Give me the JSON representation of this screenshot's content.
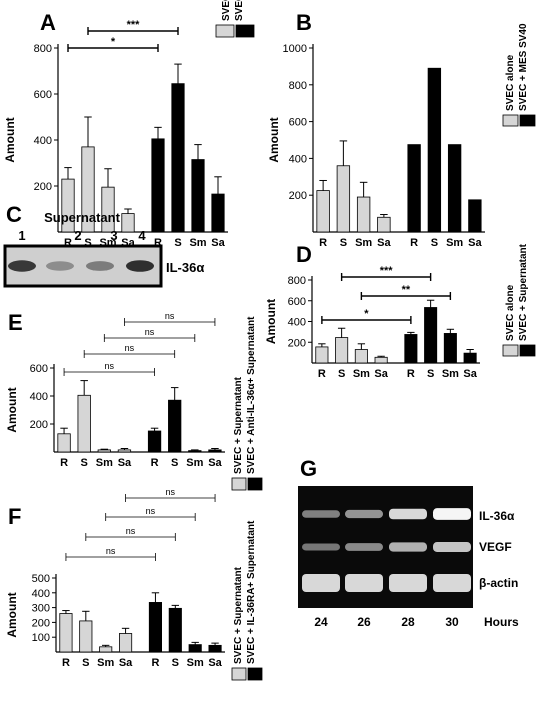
{
  "colors": {
    "light": "#d6d6d6",
    "dark": "#000000"
  },
  "chart_data": [
    {
      "panel": "A",
      "type": "bar",
      "categories": [
        "R",
        "S",
        "Sm",
        "Sa",
        "R",
        "S",
        "Sm",
        "Sa"
      ],
      "values": [
        230,
        370,
        195,
        80,
        405,
        645,
        315,
        165
      ],
      "errors": [
        50,
        130,
        80,
        20,
        50,
        85,
        65,
        75
      ],
      "series_groups": [
        "light",
        "light",
        "light",
        "light",
        "dark",
        "dark",
        "dark",
        "dark"
      ],
      "ylabel": "Amount",
      "ylim": [
        0,
        800
      ],
      "yticks": [
        200,
        400,
        600,
        800
      ],
      "legend": [
        "SVEC in M-RGF",
        "SVEC in M-NGF"
      ],
      "significance": [
        {
          "from": 0,
          "to": 4,
          "label": "*"
        },
        {
          "from": 1,
          "to": 5,
          "label": "***"
        }
      ]
    },
    {
      "panel": "B",
      "type": "bar",
      "categories": [
        "R",
        "S",
        "Sm",
        "Sa",
        "R",
        "S",
        "Sm",
        "Sa"
      ],
      "values": [
        225,
        360,
        190,
        80,
        475,
        890,
        475,
        175
      ],
      "errors": [
        55,
        135,
        80,
        15,
        0,
        0,
        0,
        0
      ],
      "series_groups": [
        "light",
        "light",
        "light",
        "light",
        "dark",
        "dark",
        "dark",
        "dark"
      ],
      "ylabel": "Amount",
      "ylim": [
        0,
        1000
      ],
      "yticks": [
        200,
        400,
        600,
        800,
        1000
      ],
      "legend": [
        "SVEC alone",
        "SVEC + MES SV40"
      ],
      "significance": []
    },
    {
      "panel": "D",
      "type": "bar",
      "categories": [
        "R",
        "S",
        "Sm",
        "Sa",
        "R",
        "S",
        "Sm",
        "Sa"
      ],
      "values": [
        155,
        245,
        130,
        55,
        275,
        535,
        285,
        95
      ],
      "errors": [
        30,
        90,
        55,
        10,
        20,
        70,
        40,
        35
      ],
      "series_groups": [
        "light",
        "light",
        "light",
        "light",
        "dark",
        "dark",
        "dark",
        "dark"
      ],
      "ylabel": "Amount",
      "ylim": [
        0,
        800
      ],
      "yticks": [
        200,
        400,
        600,
        800
      ],
      "legend": [
        "SVEC alone",
        "SVEC + Supernatant"
      ],
      "significance": [
        {
          "from": 0,
          "to": 4,
          "label": "*"
        },
        {
          "from": 2,
          "to": 6,
          "label": "**"
        },
        {
          "from": 1,
          "to": 5,
          "label": "***"
        }
      ]
    },
    {
      "panel": "E",
      "type": "bar",
      "categories": [
        "R",
        "S",
        "Sm",
        "Sa",
        "R",
        "S",
        "Sm",
        "Sa"
      ],
      "values": [
        130,
        405,
        15,
        15,
        150,
        370,
        10,
        15
      ],
      "errors": [
        40,
        105,
        5,
        10,
        20,
        90,
        5,
        10
      ],
      "series_groups": [
        "light",
        "light",
        "light",
        "light",
        "dark",
        "dark",
        "dark",
        "dark"
      ],
      "ylabel": "Amount",
      "ylim": [
        0,
        600
      ],
      "yticks": [
        200,
        400,
        600
      ],
      "legend": [
        "SVEC + Supernatant",
        "SVEC + Anti-IL-36α+ Supernatant"
      ],
      "significance": [
        {
          "from": 0,
          "to": 4,
          "label": "ns"
        },
        {
          "from": 1,
          "to": 5,
          "label": "ns"
        },
        {
          "from": 2,
          "to": 6,
          "label": "ns"
        },
        {
          "from": 3,
          "to": 7,
          "label": "ns"
        }
      ]
    },
    {
      "panel": "F",
      "type": "bar",
      "categories": [
        "R",
        "S",
        "Sm",
        "Sa",
        "R",
        "S",
        "Sm",
        "Sa"
      ],
      "values": [
        260,
        210,
        35,
        125,
        335,
        295,
        50,
        45
      ],
      "errors": [
        20,
        65,
        10,
        35,
        65,
        20,
        15,
        15
      ],
      "series_groups": [
        "light",
        "light",
        "light",
        "light",
        "dark",
        "dark",
        "dark",
        "dark"
      ],
      "ylabel": "Amount",
      "ylim": [
        0,
        500
      ],
      "yticks": [
        100,
        200,
        300,
        400,
        500
      ],
      "legend": [
        "SVEC + Supernatant",
        "SVEC + IL-36RA+ Supernatant"
      ],
      "significance": [
        {
          "from": 0,
          "to": 4,
          "label": "ns"
        },
        {
          "from": 1,
          "to": 5,
          "label": "ns"
        },
        {
          "from": 2,
          "to": 6,
          "label": "ns"
        },
        {
          "from": 3,
          "to": 7,
          "label": "ns"
        }
      ]
    }
  ],
  "panels": {
    "A": "A",
    "B": "B",
    "C": "C",
    "D": "D",
    "E": "E",
    "F": "F",
    "G": "G"
  },
  "blot_c": {
    "title": "Supernatant",
    "lanes": [
      "1",
      "2",
      "3",
      "4"
    ],
    "band_label": "IL-36α",
    "band_intensity": [
      0.85,
      0.35,
      0.45,
      0.9
    ]
  },
  "gel_g": {
    "rows": [
      {
        "label": "IL-36α",
        "intensity": [
          0.35,
          0.45,
          0.8,
          0.95
        ]
      },
      {
        "label": "VEGF",
        "intensity": [
          0.3,
          0.4,
          0.6,
          0.7
        ]
      },
      {
        "label": "β-actin",
        "intensity": [
          0.8,
          0.8,
          0.8,
          0.8
        ]
      }
    ],
    "times": [
      "24",
      "26",
      "28",
      "30"
    ],
    "time_unit": "Hours"
  }
}
